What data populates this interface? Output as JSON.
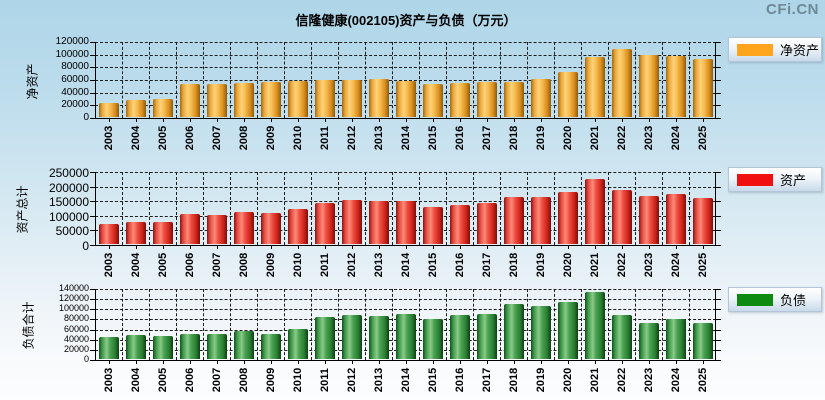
{
  "watermark": "CFi.CN",
  "title": "信隆健康(002105)资产与负债（万元）",
  "categories": [
    "2003",
    "2004",
    "2005",
    "2006",
    "2007",
    "2008",
    "2009",
    "2010",
    "2011",
    "2012",
    "2013",
    "2014",
    "2015",
    "2016",
    "2017",
    "2018",
    "2019",
    "2020",
    "2021",
    "2022",
    "2023",
    "2024",
    "2025"
  ],
  "chart_data": [
    {
      "type": "bar",
      "title": "",
      "legend_label": "净资产",
      "ylabel": "净资产",
      "color": "#FFA41C",
      "ylim": [
        0,
        120000
      ],
      "ytick_step": 20000,
      "yticks": [
        0,
        20000,
        40000,
        60000,
        80000,
        100000,
        120000
      ],
      "grid": true,
      "legend_position": "right",
      "categories": [
        "2003",
        "2004",
        "2005",
        "2006",
        "2007",
        "2008",
        "2009",
        "2010",
        "2011",
        "2012",
        "2013",
        "2014",
        "2015",
        "2016",
        "2017",
        "2018",
        "2019",
        "2020",
        "2021",
        "2022",
        "2023",
        "2024",
        "2025"
      ],
      "values": [
        22500,
        27000,
        29000,
        52000,
        51500,
        53000,
        54500,
        57000,
        59000,
        58500,
        60000,
        57500,
        51500,
        53500,
        55500,
        55000,
        59500,
        71000,
        94000,
        107500,
        98500,
        96000,
        91500
      ]
    },
    {
      "type": "bar",
      "title": "",
      "legend_label": "资产",
      "ylabel": "资产总计",
      "color": "#F01010",
      "ylim": [
        0,
        250000
      ],
      "ytick_step": 50000,
      "yticks": [
        0,
        50000,
        100000,
        150000,
        200000,
        250000
      ],
      "grid": true,
      "legend_position": "right",
      "categories": [
        "2003",
        "2004",
        "2005",
        "2006",
        "2007",
        "2008",
        "2009",
        "2010",
        "2011",
        "2012",
        "2013",
        "2014",
        "2015",
        "2016",
        "2017",
        "2018",
        "2019",
        "2020",
        "2021",
        "2022",
        "2023",
        "2024",
        "2025"
      ],
      "values": [
        68000,
        76000,
        75000,
        102000,
        101000,
        109000,
        105000,
        119000,
        142000,
        150000,
        147000,
        148000,
        126000,
        135000,
        141000,
        160000,
        161000,
        178000,
        221000,
        186000,
        166000,
        171000,
        157000
      ]
    },
    {
      "type": "bar",
      "title": "",
      "legend_label": "负债",
      "ylabel": "负债合计",
      "color": "#0F8A10",
      "ylim": [
        0,
        140000
      ],
      "ytick_step": 20000,
      "yticks": [
        0,
        20000,
        40000,
        60000,
        80000,
        100000,
        120000,
        140000
      ],
      "grid": true,
      "legend_position": "right",
      "categories": [
        "2003",
        "2004",
        "2005",
        "2006",
        "2007",
        "2008",
        "2009",
        "2010",
        "2011",
        "2012",
        "2013",
        "2014",
        "2015",
        "2016",
        "2017",
        "2018",
        "2019",
        "2020",
        "2021",
        "2022",
        "2023",
        "2024",
        "2025"
      ],
      "values": [
        44000,
        46500,
        46000,
        50000,
        49500,
        55500,
        48500,
        59500,
        82000,
        87500,
        84500,
        88500,
        79500,
        87000,
        89000,
        108000,
        104000,
        112000,
        131500,
        86000,
        71500,
        78500,
        70000
      ]
    }
  ]
}
